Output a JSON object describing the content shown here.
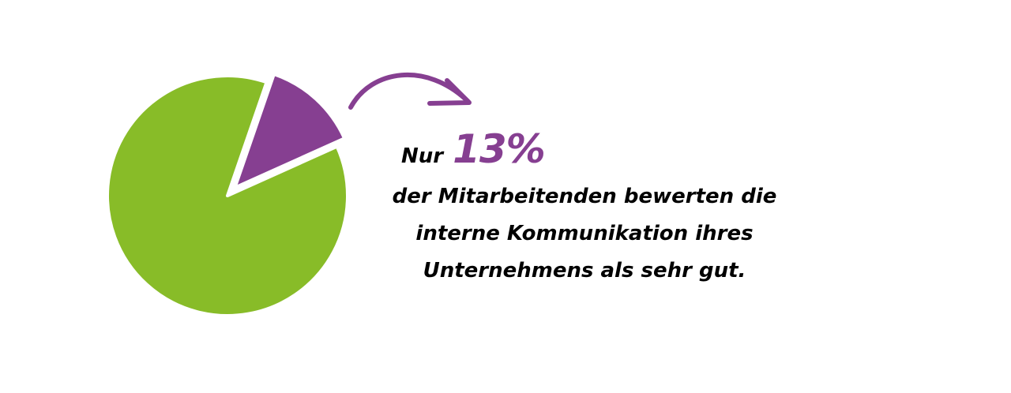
{
  "chart_data": {
    "type": "pie",
    "values": [
      13,
      87
    ],
    "colors": [
      "#863f91",
      "#88bc28"
    ],
    "highlighted_slice": 0,
    "highlight_exploded": true
  },
  "callout": {
    "prefix": "Nur",
    "value": "13%",
    "lines": [
      "der Mitarbeitenden bewerten die",
      "interne Kommunikation ihres",
      "Unternehmens als sehr gut."
    ],
    "value_color": "#863f91",
    "arrow_color": "#863f91"
  }
}
